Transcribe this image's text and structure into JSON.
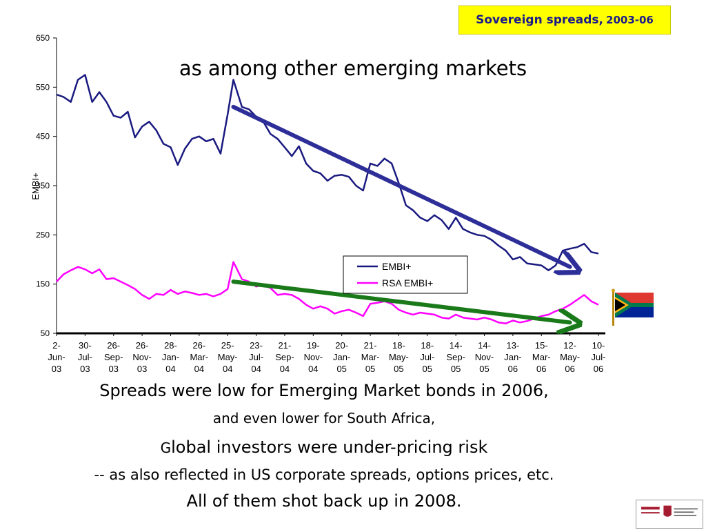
{
  "header": {
    "title_main": "Sovereign spreads,",
    "title_years": "2003-06",
    "subtitle": "as among other emerging markets"
  },
  "chart_data": {
    "type": "line",
    "ylabel": "EMBI+",
    "ylim": [
      50,
      650
    ],
    "yticks": [
      50,
      150,
      250,
      350,
      450,
      550,
      650
    ],
    "xticks": [
      "2-Jun-03",
      "30-Jul-03",
      "26-Sep-03",
      "26-Nov-03",
      "28-Jan-04",
      "26-Mar-04",
      "25-May-04",
      "23-Jul-04",
      "21-Sep-04",
      "19-Nov-04",
      "20-Jan-05",
      "21-Mar-05",
      "18-May-05",
      "18-Jul-05",
      "14-Sep-05",
      "14-Nov-05",
      "13-Jan-06",
      "15-Mar-06",
      "12-May-06",
      "10-Jul-06"
    ],
    "xticks_display": [
      [
        "2-",
        "Jun-",
        "03"
      ],
      [
        "30-",
        "Jul-",
        "03"
      ],
      [
        "26-",
        "Sep-",
        "03"
      ],
      [
        "26-",
        "Nov-",
        "03"
      ],
      [
        "28-",
        "Jan-",
        "04"
      ],
      [
        "26-",
        "Mar-",
        "04"
      ],
      [
        "25-",
        "May-",
        "04"
      ],
      [
        "23-",
        "Jul-",
        "04"
      ],
      [
        "21-",
        "Sep-",
        "04"
      ],
      [
        "19-",
        "Nov-",
        "04"
      ],
      [
        "20-",
        "Jan-",
        "05"
      ],
      [
        "21-",
        "Mar-",
        "05"
      ],
      [
        "18-",
        "May-",
        "05"
      ],
      [
        "18-",
        "Jul-",
        "05"
      ],
      [
        "14-",
        "Sep-",
        "05"
      ],
      [
        "14-",
        "Nov-",
        "05"
      ],
      [
        "13-",
        "Jan-",
        "06"
      ],
      [
        "15-",
        "Mar-",
        "06"
      ],
      [
        "12-",
        "May-",
        "06"
      ],
      [
        "10-",
        "Jul-",
        "06"
      ]
    ],
    "legend_position": "center-right",
    "grid": false,
    "series": [
      {
        "name": "EMBI+",
        "color": "#1a1a80",
        "values": [
          [
            0,
            535
          ],
          [
            0.25,
            530
          ],
          [
            0.5,
            520
          ],
          [
            0.75,
            565
          ],
          [
            1,
            575
          ],
          [
            1.25,
            520
          ],
          [
            1.5,
            540
          ],
          [
            1.75,
            520
          ],
          [
            2,
            492
          ],
          [
            2.25,
            488
          ],
          [
            2.5,
            500
          ],
          [
            2.75,
            448
          ],
          [
            3,
            470
          ],
          [
            3.25,
            480
          ],
          [
            3.5,
            462
          ],
          [
            3.75,
            435
          ],
          [
            4,
            428
          ],
          [
            4.25,
            392
          ],
          [
            4.5,
            425
          ],
          [
            4.75,
            445
          ],
          [
            5,
            450
          ],
          [
            5.25,
            440
          ],
          [
            5.5,
            445
          ],
          [
            5.75,
            415
          ],
          [
            6,
            495
          ],
          [
            6.2,
            565
          ],
          [
            6.5,
            510
          ],
          [
            6.75,
            505
          ],
          [
            7,
            490
          ],
          [
            7.25,
            480
          ],
          [
            7.5,
            455
          ],
          [
            7.75,
            445
          ],
          [
            8,
            428
          ],
          [
            8.25,
            410
          ],
          [
            8.5,
            430
          ],
          [
            8.75,
            395
          ],
          [
            9,
            380
          ],
          [
            9.25,
            375
          ],
          [
            9.5,
            360
          ],
          [
            9.75,
            370
          ],
          [
            10,
            372
          ],
          [
            10.25,
            368
          ],
          [
            10.5,
            350
          ],
          [
            10.75,
            340
          ],
          [
            11,
            395
          ],
          [
            11.25,
            390
          ],
          [
            11.5,
            405
          ],
          [
            11.75,
            395
          ],
          [
            12,
            355
          ],
          [
            12.25,
            310
          ],
          [
            12.5,
            300
          ],
          [
            12.75,
            285
          ],
          [
            13,
            278
          ],
          [
            13.25,
            290
          ],
          [
            13.5,
            280
          ],
          [
            13.75,
            262
          ],
          [
            14,
            285
          ],
          [
            14.25,
            262
          ],
          [
            14.5,
            255
          ],
          [
            14.75,
            250
          ],
          [
            15,
            248
          ],
          [
            15.25,
            240
          ],
          [
            15.5,
            228
          ],
          [
            15.75,
            218
          ],
          [
            16,
            200
          ],
          [
            16.25,
            205
          ],
          [
            16.5,
            192
          ],
          [
            16.75,
            190
          ],
          [
            17,
            188
          ],
          [
            17.25,
            178
          ],
          [
            17.5,
            188
          ],
          [
            17.75,
            218
          ],
          [
            18,
            222
          ],
          [
            18.25,
            225
          ],
          [
            18.5,
            232
          ],
          [
            18.75,
            215
          ],
          [
            19,
            212
          ]
        ]
      },
      {
        "name": "RSA EMBI+",
        "color": "#ff00ff",
        "values": [
          [
            0,
            155
          ],
          [
            0.25,
            170
          ],
          [
            0.5,
            178
          ],
          [
            0.75,
            185
          ],
          [
            1,
            180
          ],
          [
            1.25,
            172
          ],
          [
            1.5,
            180
          ],
          [
            1.75,
            160
          ],
          [
            2,
            162
          ],
          [
            2.25,
            155
          ],
          [
            2.5,
            148
          ],
          [
            2.75,
            140
          ],
          [
            3,
            128
          ],
          [
            3.25,
            120
          ],
          [
            3.5,
            130
          ],
          [
            3.75,
            128
          ],
          [
            4,
            138
          ],
          [
            4.25,
            130
          ],
          [
            4.5,
            135
          ],
          [
            4.75,
            132
          ],
          [
            5,
            128
          ],
          [
            5.25,
            130
          ],
          [
            5.5,
            125
          ],
          [
            5.75,
            130
          ],
          [
            6,
            140
          ],
          [
            6.2,
            195
          ],
          [
            6.5,
            160
          ],
          [
            6.75,
            155
          ],
          [
            7,
            145
          ],
          [
            7.25,
            148
          ],
          [
            7.5,
            142
          ],
          [
            7.75,
            128
          ],
          [
            8,
            130
          ],
          [
            8.25,
            128
          ],
          [
            8.5,
            120
          ],
          [
            8.75,
            108
          ],
          [
            9,
            100
          ],
          [
            9.25,
            105
          ],
          [
            9.5,
            100
          ],
          [
            9.75,
            90
          ],
          [
            10,
            95
          ],
          [
            10.25,
            98
          ],
          [
            10.5,
            92
          ],
          [
            10.75,
            85
          ],
          [
            11,
            110
          ],
          [
            11.25,
            112
          ],
          [
            11.5,
            115
          ],
          [
            11.75,
            110
          ],
          [
            12,
            98
          ],
          [
            12.25,
            92
          ],
          [
            12.5,
            88
          ],
          [
            12.75,
            92
          ],
          [
            13,
            90
          ],
          [
            13.25,
            88
          ],
          [
            13.5,
            82
          ],
          [
            13.75,
            80
          ],
          [
            14,
            88
          ],
          [
            14.25,
            82
          ],
          [
            14.5,
            80
          ],
          [
            14.75,
            78
          ],
          [
            15,
            82
          ],
          [
            15.25,
            78
          ],
          [
            15.5,
            72
          ],
          [
            15.75,
            70
          ],
          [
            16,
            76
          ],
          [
            16.25,
            72
          ],
          [
            16.5,
            75
          ],
          [
            16.75,
            80
          ],
          [
            17,
            85
          ],
          [
            17.25,
            88
          ],
          [
            17.5,
            95
          ],
          [
            17.75,
            100
          ],
          [
            18,
            108
          ],
          [
            18.25,
            118
          ],
          [
            18.5,
            128
          ],
          [
            18.75,
            115
          ],
          [
            19,
            108
          ]
        ]
      }
    ],
    "annotations": [
      {
        "type": "arrow",
        "color": "#2e2e99",
        "from": [
          6.2,
          510
        ],
        "to": [
          18.0,
          185
        ]
      },
      {
        "type": "arrow",
        "color": "#1a7a1a",
        "from": [
          6.2,
          155
        ],
        "to": [
          18.0,
          72
        ]
      }
    ]
  },
  "body_text": {
    "line1": "Spreads were low for Emerging Market bonds in 2006,",
    "line2": "and even lower for South Africa,",
    "line3_initial": "G",
    "line3_rest": "lobal investors were under-pricing risk",
    "line4": "-- as also reflected in US corporate spreads, options prices, etc.",
    "line5": "All of them shot back up in 2008."
  },
  "colors": {
    "title_bg": "#ffff00",
    "title_text": "#1a1a8c",
    "embi_line": "#1a1a80",
    "rsa_line": "#ff00ff",
    "arrow_blue": "#2e2e99",
    "arrow_green": "#1a7a1a"
  },
  "icons": {
    "flag": "south-africa-flag-icon",
    "logo": "harvard-kennedy-school-logo"
  }
}
